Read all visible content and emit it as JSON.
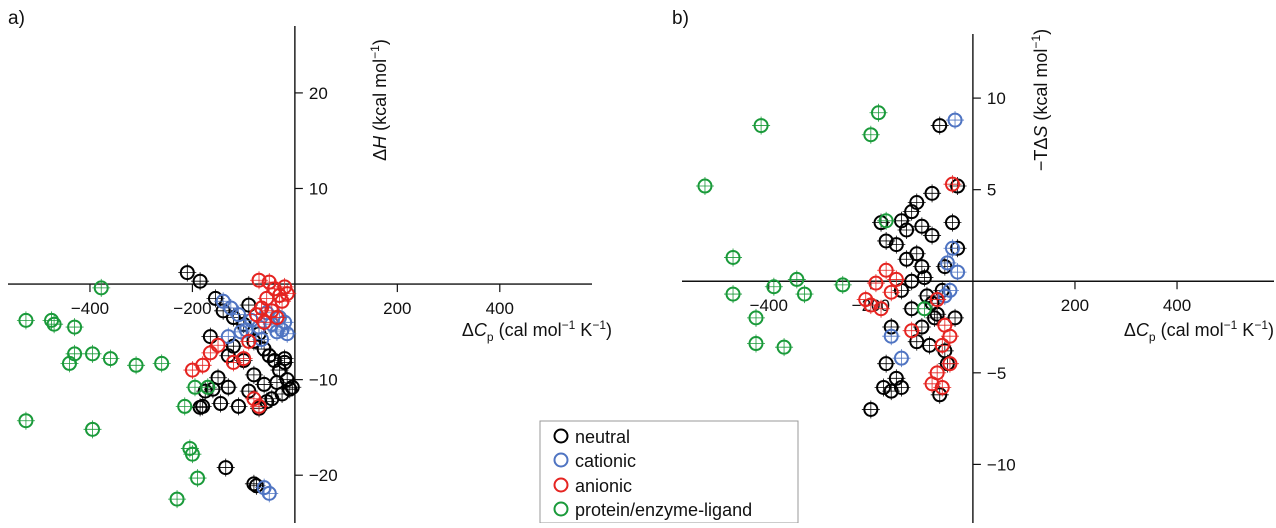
{
  "legend": {
    "items": [
      {
        "label": "neutral",
        "color": "#000000"
      },
      {
        "label": "cationic",
        "color": "#4f74c2"
      },
      {
        "label": "anionic",
        "color": "#e52421"
      },
      {
        "label": "protein/enzyme-ligand",
        "color": "#1a9a3a"
      }
    ]
  },
  "chart_data": [
    {
      "type": "scatter",
      "panel_label": "a)",
      "xlabel_parts": [
        "Δ",
        "C",
        "p",
        " (cal mol",
        "−1",
        " K",
        "−1",
        ")"
      ],
      "ylabel_parts": [
        "Δ",
        "H",
        " (kcal mol",
        "−1",
        ")"
      ],
      "xlim": [
        -560,
        580
      ],
      "ylim": [
        -25,
        27
      ],
      "xticks": [
        -400,
        -200,
        200,
        400
      ],
      "xtick_labels": [
        "−400",
        "−200",
        "200",
        "400"
      ],
      "yticks": [
        20,
        10,
        -10,
        -20
      ],
      "ytick_labels": [
        "20",
        "10",
        "−10",
        "−20"
      ],
      "grid": false,
      "series": [
        {
          "name": "neutral",
          "points": [
            [
              -210,
              1.2
            ],
            [
              -185,
              0.3
            ],
            [
              -155,
              -1.5
            ],
            [
              -140,
              -2.8
            ],
            [
              -120,
              -3.5
            ],
            [
              -100,
              -4.2
            ],
            [
              -90,
              -2.2
            ],
            [
              -80,
              -6.0
            ],
            [
              -70,
              -5.2
            ],
            [
              -60,
              -6.8
            ],
            [
              -50,
              -7.5
            ],
            [
              -40,
              -8.0
            ],
            [
              -30,
              -9.0
            ],
            [
              -20,
              -8.2
            ],
            [
              -15,
              -10.0
            ],
            [
              -10,
              -11.0
            ],
            [
              -25,
              -11.5
            ],
            [
              -45,
              -12.0
            ],
            [
              -60,
              -10.5
            ],
            [
              -80,
              -9.5
            ],
            [
              -100,
              -8.0
            ],
            [
              -120,
              -6.5
            ],
            [
              -130,
              -7.5
            ],
            [
              -150,
              -9.8
            ],
            [
              -160,
              -11.0
            ],
            [
              -175,
              -11.2
            ],
            [
              -180,
              -12.8
            ],
            [
              -185,
              -12.9
            ],
            [
              -145,
              -12.5
            ],
            [
              -110,
              -12.8
            ],
            [
              -70,
              -13.0
            ],
            [
              -55,
              -12.3
            ],
            [
              -20,
              -7.8
            ],
            [
              -90,
              -11.2
            ],
            [
              -35,
              -10.3
            ],
            [
              -5,
              -10.8
            ],
            [
              -130,
              -10.8
            ],
            [
              -165,
              -5.5
            ],
            [
              -135,
              -19.2
            ],
            [
              -80,
              -20.9
            ],
            [
              -75,
              -21.1
            ]
          ]
        },
        {
          "name": "cationic",
          "points": [
            [
              -140,
              -1.8
            ],
            [
              -125,
              -2.5
            ],
            [
              -110,
              -3.2
            ],
            [
              -95,
              -4.8
            ],
            [
              -85,
              -3.8
            ],
            [
              -70,
              -4.5
            ],
            [
              -65,
              -5.8
            ],
            [
              -55,
              -3.0
            ],
            [
              -45,
              -4.2
            ],
            [
              -35,
              -5.0
            ],
            [
              -30,
              -3.5
            ],
            [
              -25,
              -4.8
            ],
            [
              -20,
              -4.0
            ],
            [
              -15,
              -5.2
            ],
            [
              -130,
              -5.5
            ],
            [
              -105,
              -5.0
            ],
            [
              -60,
              -21.3
            ],
            [
              -50,
              -21.9
            ]
          ]
        },
        {
          "name": "anionic",
          "points": [
            [
              -70,
              0.4
            ],
            [
              -50,
              0.2
            ],
            [
              -40,
              -0.5
            ],
            [
              -30,
              -1.2
            ],
            [
              -20,
              -0.3
            ],
            [
              -25,
              -1.8
            ],
            [
              -55,
              -1.5
            ],
            [
              -65,
              -2.5
            ],
            [
              -45,
              -2.8
            ],
            [
              -35,
              -3.5
            ],
            [
              -75,
              -3.2
            ],
            [
              -60,
              -4.0
            ],
            [
              -15,
              -1.0
            ],
            [
              -90,
              -6.0
            ],
            [
              -150,
              -6.4
            ],
            [
              -165,
              -7.2
            ],
            [
              -180,
              -8.5
            ],
            [
              -200,
              -9.0
            ],
            [
              -120,
              -8.2
            ],
            [
              -70,
              -12.8
            ],
            [
              -80,
              -12.0
            ],
            [
              -100,
              -7.8
            ]
          ]
        },
        {
          "name": "protein/enzyme-ligand",
          "points": [
            [
              -475,
              -3.8
            ],
            [
              -470,
              -4.2
            ],
            [
              -525,
              -3.8
            ],
            [
              -430,
              -4.5
            ],
            [
              -440,
              -8.3
            ],
            [
              -430,
              -7.3
            ],
            [
              -378,
              -0.4
            ],
            [
              -395,
              -7.3
            ],
            [
              -360,
              -7.8
            ],
            [
              -310,
              -8.5
            ],
            [
              -260,
              -8.3
            ],
            [
              -195,
              -10.8
            ],
            [
              -170,
              -10.8
            ],
            [
              -215,
              -12.8
            ],
            [
              -205,
              -17.2
            ],
            [
              -200,
              -17.8
            ],
            [
              -190,
              -20.3
            ],
            [
              -230,
              -22.5
            ],
            [
              -525,
              -14.3
            ],
            [
              -395,
              -15.2
            ]
          ]
        }
      ]
    },
    {
      "type": "scatter",
      "panel_label": "b)",
      "xlabel_parts": [
        "Δ",
        "C",
        "p",
        " (cal mol",
        "−1",
        " K",
        "−1",
        ")"
      ],
      "ylabel_parts": [
        "−TΔ",
        "S",
        " (kcal mol",
        "−1",
        ")"
      ],
      "xlim": [
        -570,
        590
      ],
      "ylim": [
        -13.2,
        13.5
      ],
      "xticks": [
        -400,
        -200,
        200,
        400
      ],
      "xtick_labels": [
        "−400",
        "−200",
        "200",
        "400"
      ],
      "yticks": [
        10,
        5,
        -5,
        -10
      ],
      "ytick_labels": [
        "10",
        "5",
        "−5",
        "−10"
      ],
      "grid": false,
      "series": [
        {
          "name": "neutral",
          "points": [
            [
              -65,
              8.5
            ],
            [
              -80,
              4.8
            ],
            [
              -30,
              5.2
            ],
            [
              -110,
              4.3
            ],
            [
              -120,
              3.8
            ],
            [
              -140,
              3.3
            ],
            [
              -180,
              3.2
            ],
            [
              -100,
              3.0
            ],
            [
              -130,
              2.8
            ],
            [
              -170,
              2.2
            ],
            [
              -150,
              2.0
            ],
            [
              -80,
              2.5
            ],
            [
              -110,
              1.5
            ],
            [
              -130,
              1.2
            ],
            [
              -100,
              0.8
            ],
            [
              -95,
              0.2
            ],
            [
              -120,
              0.0
            ],
            [
              -140,
              -0.5
            ],
            [
              -90,
              -0.8
            ],
            [
              -60,
              -0.5
            ],
            [
              -80,
              -1.2
            ],
            [
              -120,
              -1.5
            ],
            [
              -160,
              -2.5
            ],
            [
              -100,
              -2.5
            ],
            [
              -75,
              -2.0
            ],
            [
              -110,
              -3.3
            ],
            [
              -85,
              -3.5
            ],
            [
              -55,
              -3.8
            ],
            [
              -50,
              -4.5
            ],
            [
              -170,
              -4.5
            ],
            [
              -150,
              -5.3
            ],
            [
              -140,
              -5.8
            ],
            [
              -175,
              -5.8
            ],
            [
              -160,
              -6.0
            ],
            [
              -65,
              -6.2
            ],
            [
              -200,
              -7.0
            ],
            [
              -70,
              -1.8
            ],
            [
              -40,
              3.2
            ],
            [
              -30,
              1.8
            ],
            [
              -55,
              0.8
            ],
            [
              -35,
              -2.0
            ]
          ]
        },
        {
          "name": "cationic",
          "points": [
            [
              -35,
              8.8
            ],
            [
              -40,
              1.8
            ],
            [
              -50,
              1.0
            ],
            [
              -30,
              0.5
            ],
            [
              -45,
              -0.5
            ],
            [
              -55,
              -0.8
            ],
            [
              -160,
              -3.0
            ],
            [
              -140,
              -4.2
            ]
          ]
        },
        {
          "name": "anionic",
          "points": [
            [
              -40,
              5.3
            ],
            [
              -190,
              -0.1
            ],
            [
              -170,
              0.6
            ],
            [
              -150,
              0.1
            ],
            [
              -210,
              -1.0
            ],
            [
              -200,
              -1.3
            ],
            [
              -180,
              -1.5
            ],
            [
              -160,
              -0.6
            ],
            [
              -70,
              -1.0
            ],
            [
              -55,
              -2.4
            ],
            [
              -45,
              -3.0
            ],
            [
              -60,
              -3.5
            ],
            [
              -45,
              -4.5
            ],
            [
              -70,
              -5.0
            ],
            [
              -60,
              -5.8
            ],
            [
              -80,
              -5.6
            ],
            [
              -120,
              -2.7
            ]
          ]
        },
        {
          "name": "protein/enzyme-ligand",
          "points": [
            [
              -415,
              8.5
            ],
            [
              -200,
              8.0
            ],
            [
              -185,
              9.2
            ],
            [
              -525,
              5.2
            ],
            [
              -170,
              3.3
            ],
            [
              -470,
              1.3
            ],
            [
              -470,
              -0.7
            ],
            [
              -390,
              -0.3
            ],
            [
              -345,
              0.1
            ],
            [
              -330,
              -0.7
            ],
            [
              -255,
              -0.2
            ],
            [
              -425,
              -2.0
            ],
            [
              -425,
              -3.4
            ],
            [
              -370,
              -3.6
            ],
            [
              -95,
              -1.5
            ]
          ]
        }
      ]
    }
  ]
}
